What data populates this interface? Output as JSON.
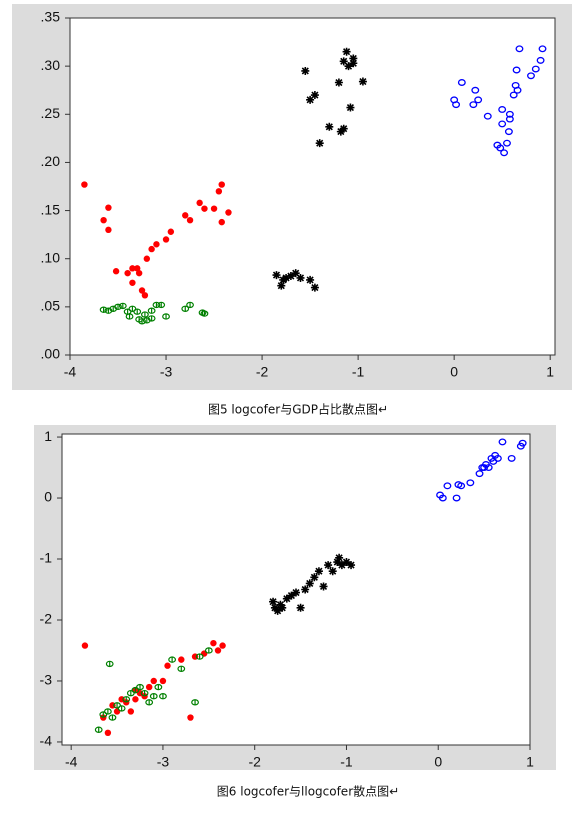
{
  "chart_data": [
    {
      "type": "scatter",
      "caption": "图5 logcofer与GDP占比散点图↵",
      "xlim": [
        -4,
        1.05
      ],
      "ylim": [
        0,
        0.35
      ],
      "xticks": [
        -4,
        -3,
        -2,
        -1,
        0,
        1
      ],
      "yticks": [
        {
          "value": 0,
          "label": ".00"
        },
        {
          "value": 0.05,
          "label": ".05"
        },
        {
          "value": 0.1,
          "label": ".10"
        },
        {
          "value": 0.15,
          "label": ".15"
        },
        {
          "value": 0.2,
          "label": ".20"
        },
        {
          "value": 0.25,
          "label": ".25"
        },
        {
          "value": 0.3,
          "label": ".30"
        },
        {
          "value": 0.35,
          "label": ".35"
        }
      ],
      "series": [
        {
          "color": "#ff0000",
          "marker": "dot",
          "x": [
            -3.85,
            -3.65,
            -3.6,
            -3.6,
            -3.52,
            -3.4,
            -3.35,
            -3.3,
            -3.28,
            -3.25,
            -3.22,
            -3.2,
            -3.15,
            -3.1,
            -3.0,
            -2.95,
            -2.8,
            -2.75,
            -2.65,
            -2.6,
            -2.5,
            -2.45,
            -2.42,
            -2.42,
            -2.35,
            -3.35
          ],
          "y": [
            0.177,
            0.14,
            0.153,
            0.13,
            0.087,
            0.085,
            0.075,
            0.09,
            0.085,
            0.067,
            0.062,
            0.1,
            0.11,
            0.115,
            0.12,
            0.128,
            0.145,
            0.14,
            0.158,
            0.152,
            0.152,
            0.17,
            0.177,
            0.138,
            0.148,
            0.09
          ]
        },
        {
          "color": "#008000",
          "marker": "theta",
          "x": [
            -3.65,
            -3.6,
            -3.55,
            -3.5,
            -3.45,
            -3.4,
            -3.38,
            -3.35,
            -3.3,
            -3.28,
            -3.25,
            -3.22,
            -3.2,
            -3.15,
            -3.1,
            -3.05,
            -3.0,
            -2.8,
            -2.75,
            -2.62,
            -2.6,
            -3.15
          ],
          "y": [
            0.047,
            0.046,
            0.048,
            0.05,
            0.051,
            0.045,
            0.04,
            0.048,
            0.045,
            0.037,
            0.035,
            0.042,
            0.036,
            0.046,
            0.052,
            0.052,
            0.04,
            0.048,
            0.052,
            0.044,
            0.043,
            0.038
          ]
        },
        {
          "color": "#000000",
          "marker": "asterisk",
          "x": [
            -1.55,
            -1.5,
            -1.45,
            -1.4,
            -1.3,
            -1.2,
            -1.18,
            -1.15,
            -1.15,
            -1.12,
            -1.1,
            -1.08,
            -1.05,
            -1.05,
            -0.95,
            -1.85,
            -1.8,
            -1.78,
            -1.75,
            -1.7,
            -1.65,
            -1.6,
            -1.5,
            -1.45
          ],
          "y": [
            0.295,
            0.265,
            0.27,
            0.22,
            0.237,
            0.283,
            0.232,
            0.305,
            0.235,
            0.315,
            0.3,
            0.257,
            0.308,
            0.303,
            0.284,
            0.083,
            0.072,
            0.078,
            0.08,
            0.082,
            0.085,
            0.08,
            0.078,
            0.07
          ]
        },
        {
          "color": "#0000ff",
          "marker": "open-circle",
          "x": [
            0.0,
            0.02,
            0.08,
            0.2,
            0.22,
            0.25,
            0.35,
            0.45,
            0.48,
            0.5,
            0.5,
            0.52,
            0.55,
            0.57,
            0.58,
            0.58,
            0.62,
            0.64,
            0.66,
            0.68,
            0.8,
            0.85,
            0.9,
            0.92,
            0.65
          ],
          "y": [
            0.265,
            0.26,
            0.283,
            0.26,
            0.275,
            0.265,
            0.248,
            0.218,
            0.215,
            0.24,
            0.255,
            0.21,
            0.22,
            0.232,
            0.245,
            0.25,
            0.27,
            0.28,
            0.275,
            0.318,
            0.29,
            0.297,
            0.306,
            0.318,
            0.296
          ]
        }
      ]
    },
    {
      "type": "scatter",
      "caption": "图6 logcofer与llogcofer散点图↵",
      "xlim": [
        -4.1,
        1.0
      ],
      "ylim": [
        -4.05,
        1.05
      ],
      "xticks": [
        -4,
        -3,
        -2,
        -1,
        0,
        1
      ],
      "yticks": [
        -4,
        -3,
        -2,
        -1,
        0,
        1
      ],
      "series": [
        {
          "color": "#ff0000",
          "marker": "dot",
          "x": [
            -3.85,
            -3.65,
            -3.6,
            -3.55,
            -3.5,
            -3.45,
            -3.4,
            -3.35,
            -3.3,
            -3.25,
            -3.2,
            -3.15,
            -3.1,
            -3.0,
            -2.95,
            -2.8,
            -2.7,
            -2.65,
            -2.55,
            -2.45,
            -2.4,
            -2.35,
            -3.3
          ],
          "y": [
            -2.42,
            -3.6,
            -3.85,
            -3.4,
            -3.5,
            -3.3,
            -3.35,
            -3.5,
            -3.3,
            -3.2,
            -3.25,
            -3.1,
            -3.0,
            -3.0,
            -2.75,
            -2.65,
            -3.6,
            -2.6,
            -2.55,
            -2.38,
            -2.5,
            -2.42,
            -3.15
          ]
        },
        {
          "color": "#008000",
          "marker": "theta",
          "x": [
            -3.7,
            -3.65,
            -3.6,
            -3.58,
            -3.55,
            -3.5,
            -3.45,
            -3.4,
            -3.35,
            -3.3,
            -3.25,
            -3.2,
            -3.15,
            -3.1,
            -3.05,
            -3.0,
            -2.9,
            -2.8,
            -2.65,
            -2.6,
            -2.5
          ],
          "y": [
            -3.8,
            -3.55,
            -3.5,
            -2.72,
            -3.6,
            -3.4,
            -3.45,
            -3.3,
            -3.2,
            -3.15,
            -3.1,
            -3.2,
            -3.35,
            -3.25,
            -3.1,
            -3.25,
            -2.65,
            -2.8,
            -3.35,
            -2.6,
            -2.5
          ]
        },
        {
          "color": "#000000",
          "marker": "asterisk",
          "x": [
            -1.8,
            -1.78,
            -1.75,
            -1.72,
            -1.7,
            -1.65,
            -1.6,
            -1.55,
            -1.5,
            -1.45,
            -1.4,
            -1.35,
            -1.25,
            -1.2,
            -1.15,
            -1.1,
            -1.08,
            -1.05,
            -1.0,
            -0.95,
            -1.3
          ],
          "y": [
            -1.7,
            -1.8,
            -1.85,
            -1.75,
            -1.8,
            -1.65,
            -1.6,
            -1.55,
            -1.8,
            -1.5,
            -1.4,
            -1.3,
            -1.45,
            -1.1,
            -1.2,
            -1.05,
            -0.98,
            -1.1,
            -1.05,
            -1.1,
            -1.2
          ]
        },
        {
          "color": "#0000ff",
          "marker": "open-circle",
          "x": [
            0.02,
            0.05,
            0.1,
            0.2,
            0.22,
            0.25,
            0.35,
            0.45,
            0.48,
            0.5,
            0.52,
            0.55,
            0.58,
            0.6,
            0.62,
            0.65,
            0.7,
            0.8,
            0.9,
            0.92
          ],
          "y": [
            0.05,
            0.0,
            0.2,
            0.0,
            0.22,
            0.2,
            0.25,
            0.4,
            0.5,
            0.5,
            0.55,
            0.5,
            0.65,
            0.6,
            0.7,
            0.65,
            0.92,
            0.65,
            0.85,
            0.9
          ]
        }
      ]
    }
  ]
}
